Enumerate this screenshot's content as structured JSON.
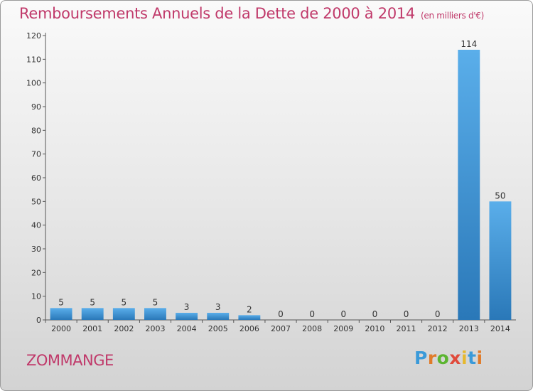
{
  "chart_data": {
    "type": "bar",
    "title": "Remboursements Annuels de la Dette de 2000 à 2014",
    "subtitle": "(en milliers d'€)",
    "categories": [
      "2000",
      "2001",
      "2002",
      "2003",
      "2004",
      "2005",
      "2006",
      "2007",
      "2008",
      "2009",
      "2010",
      "2011",
      "2012",
      "2013",
      "2014"
    ],
    "values": [
      5,
      5,
      5,
      5,
      3,
      3,
      2,
      0,
      0,
      0,
      0,
      0,
      0,
      114,
      50
    ],
    "data_labels": [
      "5",
      "5",
      "5",
      "5",
      "3",
      "3",
      "2",
      "0",
      "0",
      "0",
      "0",
      "0",
      "0",
      "114",
      "50"
    ],
    "ylim": [
      0,
      120
    ],
    "yticks": [
      "0",
      "10",
      "20",
      "30",
      "40",
      "50",
      "60",
      "70",
      "80",
      "90",
      "100",
      "110",
      "120"
    ],
    "grid": false,
    "bar_color": "#3a8fd6"
  },
  "footer": {
    "commune": "ZOMMANGE",
    "logo_letters": [
      "P",
      "r",
      "o",
      "x",
      "i",
      "t",
      "i"
    ],
    "logo_colors": [
      "#3a9ad9",
      "#e07b2a",
      "#5cb531",
      "#e04a3b",
      "#e6b82e",
      "#3a9ad9",
      "#e07b2a"
    ]
  }
}
